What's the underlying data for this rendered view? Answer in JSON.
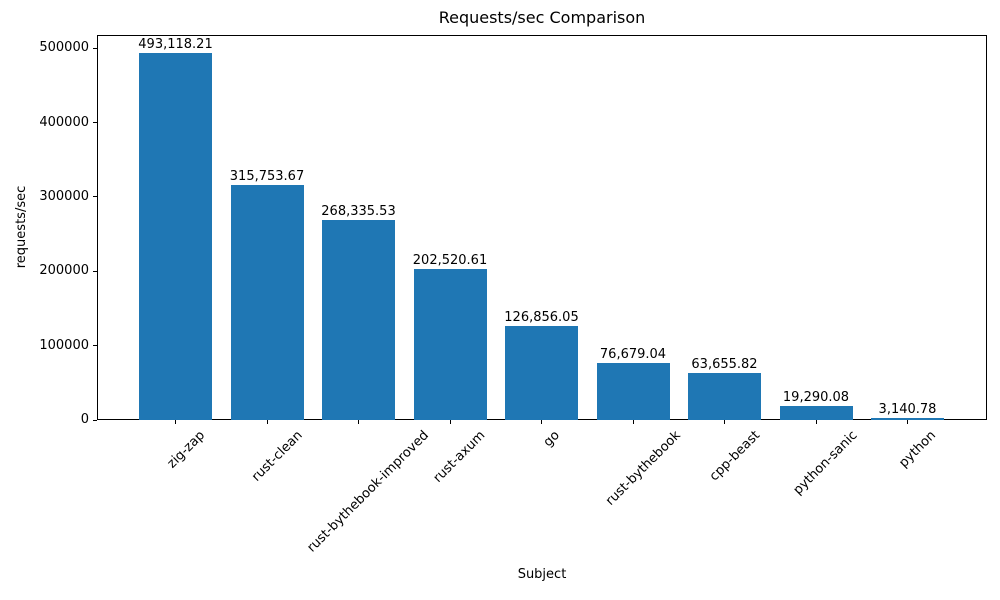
{
  "chart_data": {
    "type": "bar",
    "title": "Requests/sec Comparison",
    "xlabel": "Subject",
    "ylabel": "requests/sec",
    "categories": [
      "zig-zap",
      "rust-clean",
      "rust-bythebook-improved",
      "rust-axum",
      "go",
      "rust-bythebook",
      "cpp-beast",
      "python-sanic",
      "python"
    ],
    "values": [
      493118.21,
      315753.67,
      268335.53,
      202520.61,
      126856.05,
      76679.04,
      63655.82,
      19290.08,
      3140.78
    ],
    "value_labels": [
      "493,118.21",
      "315,753.67",
      "268,335.53",
      "202,520.61",
      "126,856.05",
      "76,679.04",
      "63,655.82",
      "19,290.08",
      "3,140.78"
    ],
    "y_ticks": [
      0,
      100000,
      200000,
      300000,
      400000,
      500000
    ],
    "y_tick_labels": [
      "0",
      "100000",
      "200000",
      "300000",
      "400000",
      "500000"
    ],
    "ylim": [
      0,
      517774
    ],
    "xtick_rotation_deg": 45,
    "bar_color": "#1f77b4",
    "axis_color": "#000000",
    "grid": false,
    "legend": "none"
  }
}
